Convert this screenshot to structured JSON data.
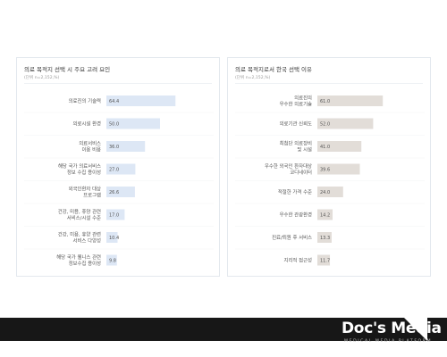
{
  "charts": [
    {
      "title": "의료 목적지 선택 시 주요 고려 요인",
      "unit": "(단위 n=2,152,%)",
      "bar_color": "#dde7f5",
      "chart_data": {
        "type": "bar",
        "orientation": "horizontal",
        "categories": [
          [
            "의료진의 기술력"
          ],
          [
            "의료시설 환경"
          ],
          [
            "의료서비스",
            "이용 비용"
          ],
          [
            "해당 국가 의료서비스",
            "정보 수집 용이성"
          ],
          [
            "외국인환자 대상",
            "프로그램"
          ],
          [
            "건강, 미용, 휴양 관련",
            "서비스/시설 수준"
          ],
          [
            "건강, 미용, 휴양 관련",
            "서비스 다양성"
          ],
          [
            "해당 국가 웰니스 관련",
            "정보수집 용이성"
          ]
        ],
        "values": [
          64.4,
          50.0,
          36.0,
          27.0,
          26.6,
          17.0,
          10.4,
          9.8
        ],
        "value_labels": [
          "64.4",
          "50.0",
          "36.0",
          "27.0",
          "26.6",
          "17.0",
          "10.4",
          "9.8"
        ],
        "title": "의료 목적지 선택 시 주요 고려 요인",
        "xlabel": "",
        "ylabel": "",
        "xlim": [
          0,
          100
        ]
      }
    },
    {
      "title": "의료 목적지로서 한국 선택 이유",
      "unit": "(단위 n=2,152,%)",
      "bar_color": "#e2ddd8",
      "chart_data": {
        "type": "bar",
        "orientation": "horizontal",
        "categories": [
          [
            "의료진의",
            "우수한 의료기술"
          ],
          [
            "의료기관 신뢰도"
          ],
          [
            "최첨단 의료장비",
            "및 시설"
          ],
          [
            "우수한 외국인 환자대상",
            "코디네이터"
          ],
          [
            "적절한 가격 수준"
          ],
          [
            "우수한 관광환경"
          ],
          [
            "진료/퇴원 후 서비스"
          ],
          [
            "지리적 접근성"
          ]
        ],
        "values": [
          61.0,
          52.0,
          41.0,
          39.6,
          24.0,
          14.2,
          13.3,
          11.7
        ],
        "value_labels": [
          "61.0",
          "52.0",
          "41.0",
          "39.6",
          "24.0",
          "14.2",
          "13.3",
          "11.7"
        ],
        "title": "의료 목적지로서 한국 선택 이유",
        "xlabel": "",
        "ylabel": "",
        "xlim": [
          0,
          100
        ]
      }
    }
  ],
  "footer": {
    "brand": "Doc's Media",
    "tagline": "MEDICAL MEDIA PLATFORM"
  }
}
